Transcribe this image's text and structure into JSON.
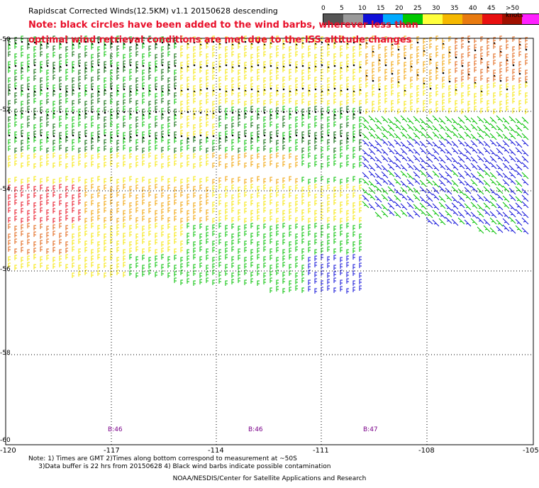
{
  "header": {
    "title": "Rapidscat Corrected Winds(12.5KM) v1.1 20150628 descending",
    "note_line1": "Note: black circles have been added to the wind barbs, wherever less than",
    "note_line2": "optimal wind retrieval conditions are met due to the ISS altitude changes"
  },
  "legend": {
    "labels": [
      "0",
      "5",
      "10",
      "15",
      "20",
      "25",
      "30",
      "35",
      "40",
      "45",
      ">50 knots"
    ],
    "colors": [
      "#555555",
      "#9a9a9a",
      "#1010d8",
      "#00aaff",
      "#00c800",
      "#ffff3c",
      "#f5b800",
      "#e87a10",
      "#e81010",
      "#a01000",
      "#ff20ff",
      "#8010c8"
    ]
  },
  "map": {
    "x_axis": {
      "ticks": [
        "-120",
        "-117",
        "-114",
        "-111",
        "-108",
        "-105"
      ]
    },
    "y_axis": {
      "ticks": [
        "-50",
        "-52",
        "-54",
        "-56",
        "-58",
        "-60"
      ]
    },
    "bottom_labels": [
      "B:46",
      "B:46",
      "B:47"
    ]
  },
  "footer": {
    "notes": "Note: 1) Times are GMT 2)Times along bottom correspond to measurement at ~50S\n     3)Data buffer is 22 hrs from 20150628 4) Black wind barbs indicate possible contamination",
    "credit": "NOAA/NESDIS/Center for Satellite Applications and Research"
  },
  "wind_colors": {
    "blue": "#1010d8",
    "green": "#00c000",
    "yellow": "#f5e600",
    "orange": "#f0a000",
    "darkorange": "#e06010",
    "red": "#e81020",
    "darkgreen": "#006400",
    "black": "#000000"
  }
}
